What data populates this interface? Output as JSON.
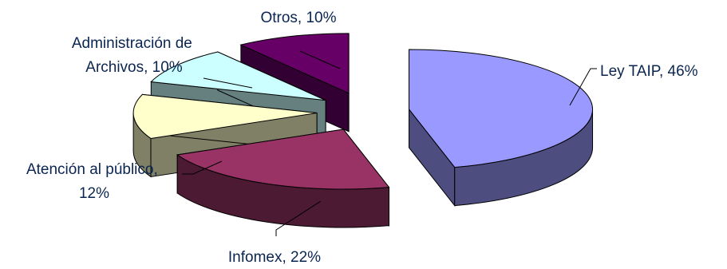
{
  "chart_data": {
    "type": "pie",
    "style": "3d-exploded",
    "slices": [
      {
        "category": "Ley TAIP",
        "value": 46,
        "label_text": "Ley TAIP, 46%",
        "top_color": "#9999ff",
        "side_color": "#4d4d80"
      },
      {
        "category": "Infomex",
        "value": 22,
        "label_text": "Infomex, 22%",
        "top_color": "#993366",
        "side_color": "#4d1a33"
      },
      {
        "category": "Atención al público",
        "value": 12,
        "label_text": [
          "Atención al público,",
          "12%"
        ],
        "top_color": "#ffffcc",
        "side_color": "#808066"
      },
      {
        "category": "Administración de Archivos",
        "value": 10,
        "label_text": [
          "Administración de",
          "Archivos, 10%"
        ],
        "top_color": "#ccffff",
        "side_color": "#668080"
      },
      {
        "category": "Otros",
        "value": 10,
        "label_text": "Otros, 10%",
        "top_color": "#660066",
        "side_color": "#330033"
      }
    ],
    "legend": "none"
  }
}
